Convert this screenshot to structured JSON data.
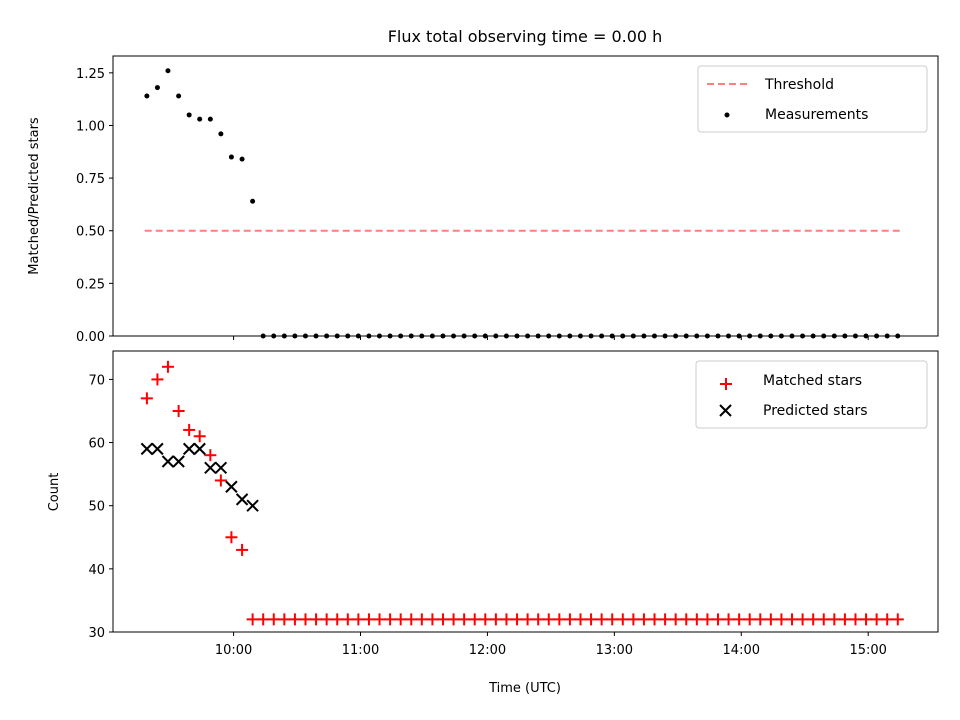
{
  "chart_data": [
    {
      "type": "scatter",
      "title": "Flux total observing time = 0.00 h",
      "xlabel": "",
      "ylabel": "Matched/Predicted stars",
      "xlim": [
        9.05,
        15.55
      ],
      "ylim": [
        0.0,
        1.33
      ],
      "yticks": [
        {
          "value": 0.0,
          "label": "0.00"
        },
        {
          "value": 0.25,
          "label": "0.25"
        },
        {
          "value": 0.5,
          "label": "0.50"
        },
        {
          "value": 0.75,
          "label": "0.75"
        },
        {
          "value": 1.0,
          "label": "1.00"
        },
        {
          "value": 1.25,
          "label": "1.25"
        }
      ],
      "legend_position": "top-right",
      "series": [
        {
          "name": "Threshold",
          "kind": "line",
          "style": "dashed",
          "color": "#ff7f7f",
          "x": [
            9.3,
            15.25
          ],
          "y": [
            0.5,
            0.5
          ]
        },
        {
          "name": "Measurements",
          "kind": "scatter",
          "marker": "dot",
          "color": "#000000",
          "x": [
            9.317,
            9.4,
            9.483,
            9.567,
            9.65,
            9.733,
            9.817,
            9.9,
            9.983,
            10.067,
            10.15
          ],
          "y": [
            1.14,
            1.18,
            1.26,
            1.14,
            1.05,
            1.03,
            1.03,
            0.96,
            0.85,
            0.84,
            0.64
          ],
          "zero_run": {
            "start": 10.233,
            "end": 15.25,
            "step": 0.08333,
            "value": 0.0
          }
        }
      ]
    },
    {
      "type": "scatter",
      "title": "",
      "xlabel": "Time (UTC)",
      "ylabel": "Count",
      "xlim": [
        9.05,
        15.55
      ],
      "ylim": [
        30,
        74.5
      ],
      "yticks": [
        {
          "value": 30,
          "label": "30"
        },
        {
          "value": 40,
          "label": "40"
        },
        {
          "value": 50,
          "label": "50"
        },
        {
          "value": 60,
          "label": "60"
        },
        {
          "value": 70,
          "label": "70"
        }
      ],
      "xticks": [
        {
          "value": 10,
          "label": "10:00"
        },
        {
          "value": 11,
          "label": "11:00"
        },
        {
          "value": 12,
          "label": "12:00"
        },
        {
          "value": 13,
          "label": "13:00"
        },
        {
          "value": 14,
          "label": "14:00"
        },
        {
          "value": 15,
          "label": "15:00"
        }
      ],
      "legend_position": "top-right",
      "series": [
        {
          "name": "Matched stars",
          "kind": "scatter",
          "marker": "plus",
          "color": "#ff0000",
          "x": [
            9.317,
            9.4,
            9.483,
            9.567,
            9.65,
            9.733,
            9.817,
            9.9,
            9.983,
            10.067
          ],
          "y": [
            67,
            70,
            72,
            65,
            62,
            61,
            58,
            54,
            45,
            43
          ],
          "flat_run": {
            "start": 10.15,
            "end": 15.25,
            "step": 0.08333,
            "value": 32
          }
        },
        {
          "name": "Predicted stars",
          "kind": "scatter",
          "marker": "x",
          "color": "#000000",
          "x": [
            9.317,
            9.4,
            9.483,
            9.567,
            9.65,
            9.733,
            9.817,
            9.9,
            9.983,
            10.067,
            10.15
          ],
          "y": [
            59,
            59,
            57,
            57,
            59,
            59,
            56,
            56,
            53,
            51,
            50
          ]
        }
      ]
    }
  ]
}
